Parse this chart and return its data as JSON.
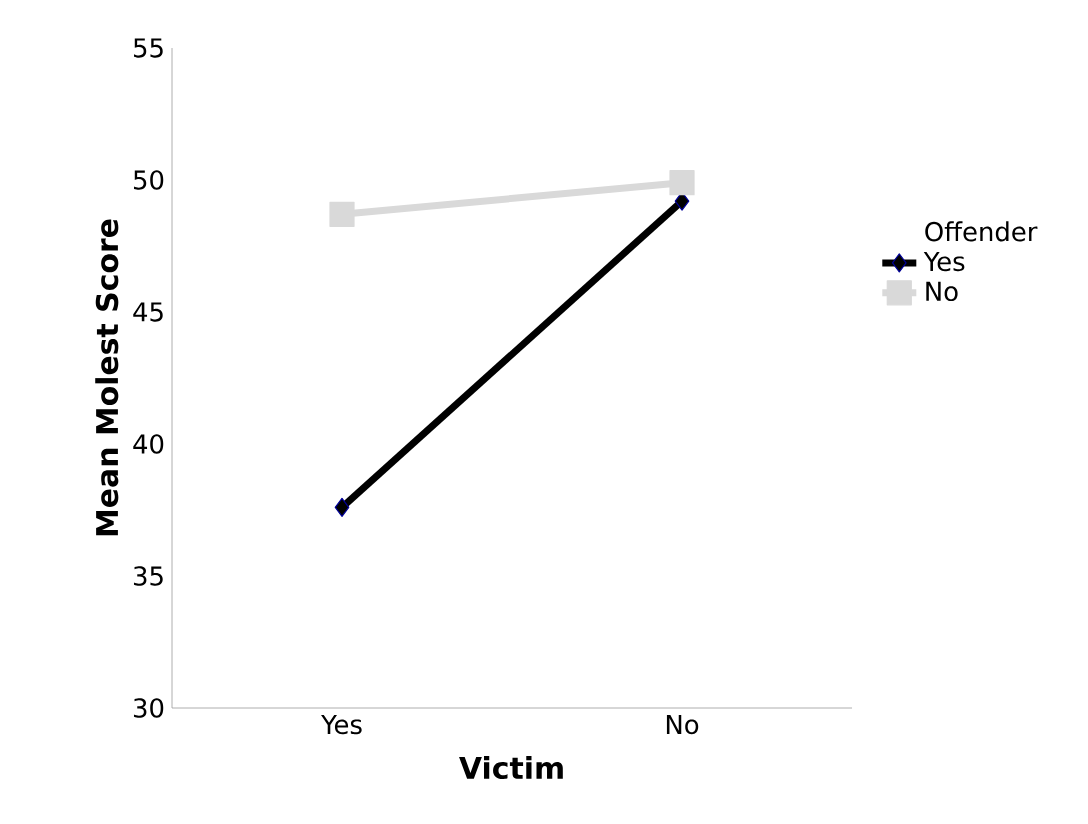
{
  "chart_data": {
    "type": "line",
    "xlabel": "Victim",
    "ylabel": "Mean Molest Score",
    "legend_title": "Offender",
    "legend": "right",
    "categories": [
      "Yes",
      "No"
    ],
    "ylim": [
      30,
      55
    ],
    "yticks": [
      30,
      35,
      40,
      45,
      50,
      55
    ],
    "grid": false,
    "series": [
      {
        "name": "Yes",
        "color": "#000000",
        "values": [
          37.6,
          49.2
        ],
        "marker": "diamond"
      },
      {
        "name": "No",
        "color": "#d9d9d9",
        "values": [
          48.7,
          49.9
        ],
        "marker": "square"
      }
    ]
  }
}
